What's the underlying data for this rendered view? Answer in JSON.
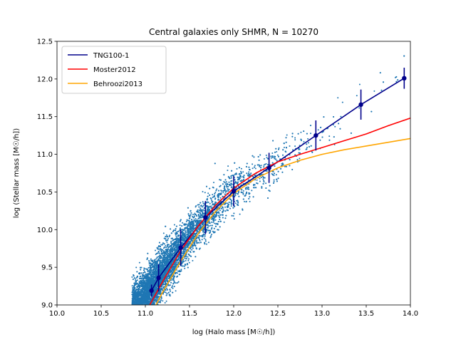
{
  "chart_data": {
    "type": "scatter",
    "title": "Central galaxies only  SHMR, N = 10270",
    "xlabel": "log (Halo mass [M☉/h])",
    "ylabel": "log (Stellar mass [M☉/h])",
    "xlim": [
      10.0,
      14.0
    ],
    "ylim": [
      9.0,
      12.5
    ],
    "xticks": [
      "10.0",
      "10.5",
      "11.0",
      "11.5",
      "12.0",
      "12.5",
      "13.0",
      "13.5",
      "14.0"
    ],
    "yticks": [
      "9.0",
      "9.5",
      "10.0",
      "10.5",
      "11.0",
      "11.5",
      "12.0",
      "12.5"
    ],
    "grid": false,
    "legend_position": "top-left",
    "scatter_color": "#1f77b4",
    "scatter_count": 10270,
    "series": [
      {
        "name": "TNG100-1",
        "color": "#00008b",
        "x": [
          11.07,
          11.15,
          11.4,
          11.68,
          12.0,
          12.4,
          12.93,
          13.44,
          13.93
        ],
        "y": [
          9.19,
          9.36,
          9.76,
          10.16,
          10.51,
          10.82,
          11.25,
          11.66,
          12.01
        ],
        "yerr": [
          0.08,
          0.18,
          0.24,
          0.22,
          0.2,
          0.2,
          0.2,
          0.2,
          0.14
        ]
      },
      {
        "name": "Moster2012",
        "color": "#ff0000",
        "x": [
          11.05,
          11.2,
          11.4,
          11.6,
          11.8,
          12.0,
          12.25,
          12.5,
          12.75,
          13.0,
          13.25,
          13.5,
          13.75,
          14.0
        ],
        "y": [
          9.0,
          9.32,
          9.72,
          10.05,
          10.33,
          10.55,
          10.75,
          10.9,
          11.0,
          11.09,
          11.18,
          11.27,
          11.38,
          11.48
        ]
      },
      {
        "name": "Behroozi2013",
        "color": "#ffa500",
        "x": [
          11.12,
          11.2,
          11.4,
          11.6,
          11.8,
          12.0,
          12.25,
          12.5,
          12.75,
          13.0,
          13.25,
          13.5,
          13.75,
          14.0
        ],
        "y": [
          9.0,
          9.18,
          9.58,
          9.95,
          10.25,
          10.48,
          10.68,
          10.82,
          10.92,
          11.0,
          11.06,
          11.11,
          11.16,
          11.21
        ]
      }
    ]
  }
}
